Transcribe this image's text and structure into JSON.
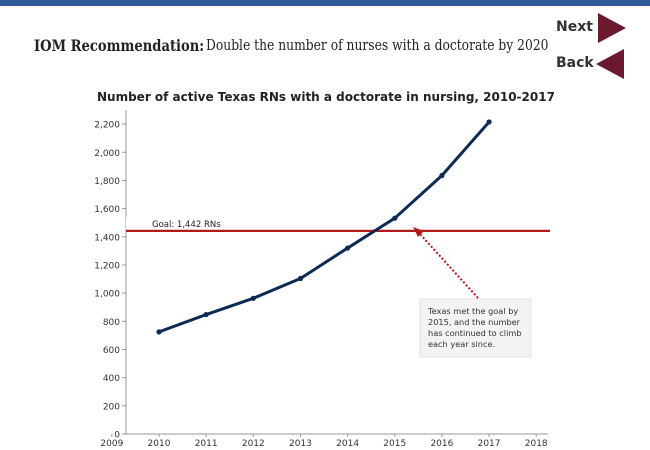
{
  "header": {
    "recommendation_label": "IOM Recommendation:",
    "recommendation_text": "Double the number of nurses with a doctorate by 2020"
  },
  "nav": {
    "next_label": "Next",
    "back_label": "Back",
    "next_icon": "triangle-right-icon",
    "back_icon": "triangle-left-icon",
    "button_color": "#6b1a2e"
  },
  "chart_data": {
    "type": "line",
    "title": "Number of active Texas RNs with a doctorate in nursing, 2010-2017",
    "x_ticks": [
      "2009",
      "2010",
      "2011",
      "2012",
      "2013",
      "2014",
      "2015",
      "2016",
      "2017",
      "2018"
    ],
    "xlim": [
      2009,
      2018
    ],
    "ylim": [
      0,
      2300
    ],
    "y_ticks": [
      "0",
      "200",
      "400",
      "600",
      "800",
      "1,000",
      "1,200",
      "1,400",
      "1,600",
      "1,800",
      "2,000",
      "2,200"
    ],
    "series": [
      {
        "x": [
          2010,
          2011,
          2012,
          2013,
          2014,
          2015,
          2016,
          2017
        ],
        "values": [
          725,
          848,
          963,
          1104,
          1320,
          1532,
          1835,
          2215
        ],
        "color": "#0d2a55"
      }
    ],
    "goal": {
      "value": 1442,
      "label": "Goal: 1,442 RNs",
      "color": "#b01c1c"
    },
    "annotation": {
      "lines": [
        "Texas met the goal by",
        "2015, and the number",
        "has continued to climb",
        "each year since."
      ],
      "arrow_color": "#b01c1c"
    },
    "grid": false
  }
}
